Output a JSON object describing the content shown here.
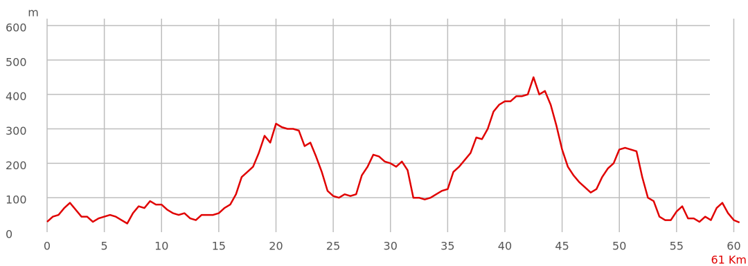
{
  "chart_data": {
    "type": "line",
    "y_label": "m",
    "x_label": "61 Km",
    "x_label_color": "#e00000",
    "color": "#e00000",
    "grid": true,
    "xlim": [
      0,
      61
    ],
    "ylim": [
      0,
      600
    ],
    "xticks": [
      0,
      5,
      10,
      15,
      20,
      25,
      30,
      35,
      40,
      45,
      50,
      55,
      60
    ],
    "yticks": [
      0,
      100,
      200,
      300,
      400,
      500,
      600
    ],
    "x": [
      0,
      0.5,
      1,
      1.5,
      2,
      2.5,
      3,
      3.5,
      4,
      4.5,
      5,
      5.5,
      6,
      6.5,
      7,
      7.5,
      8,
      8.5,
      9,
      9.5,
      10,
      10.5,
      11,
      11.5,
      12,
      12.5,
      13,
      13.5,
      14,
      14.5,
      15,
      15.5,
      16,
      16.5,
      17,
      17.5,
      18,
      18.5,
      19,
      19.5,
      20,
      20.5,
      21,
      21.5,
      22,
      22.5,
      23,
      23.5,
      24,
      24.5,
      25,
      25.5,
      26,
      26.5,
      27,
      27.5,
      28,
      28.5,
      29,
      29.5,
      30,
      30.5,
      31,
      31.5,
      32,
      32.5,
      33,
      33.5,
      34,
      34.5,
      35,
      35.5,
      36,
      36.5,
      37,
      37.5,
      38,
      38.5,
      39,
      39.5,
      40,
      40.5,
      41,
      41.5,
      42,
      42.5,
      43,
      43.5,
      44,
      44.5,
      45,
      45.5,
      46,
      46.5,
      47,
      47.5,
      48,
      48.5,
      49,
      49.5,
      50,
      50.5,
      51,
      51.5,
      52,
      52.5,
      53,
      53.5,
      54,
      54.5,
      55,
      55.5,
      56,
      56.5,
      57,
      57.5,
      58,
      58.5,
      59,
      59.5,
      60,
      60.5
    ],
    "values": [
      30,
      45,
      50,
      70,
      85,
      65,
      45,
      45,
      30,
      40,
      45,
      50,
      45,
      35,
      25,
      55,
      75,
      70,
      90,
      80,
      80,
      65,
      55,
      50,
      55,
      40,
      35,
      50,
      50,
      50,
      55,
      70,
      80,
      110,
      160,
      175,
      190,
      230,
      280,
      260,
      315,
      305,
      300,
      300,
      295,
      250,
      260,
      220,
      175,
      120,
      105,
      100,
      110,
      105,
      110,
      165,
      190,
      225,
      220,
      205,
      200,
      190,
      205,
      180,
      100,
      100,
      95,
      100,
      110,
      120,
      125,
      175,
      190,
      210,
      230,
      275,
      270,
      300,
      350,
      370,
      380,
      380,
      395,
      395,
      400,
      450,
      400,
      410,
      370,
      310,
      240,
      190,
      165,
      145,
      130,
      115,
      125,
      160,
      185,
      200,
      240,
      245,
      240,
      235,
      160,
      100,
      90,
      45,
      35,
      35,
      60,
      75,
      40,
      40,
      30,
      45,
      35,
      70,
      85,
      55,
      35,
      28
    ]
  }
}
